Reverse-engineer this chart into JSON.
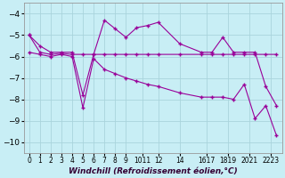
{
  "xlabel": "Windchill (Refroidissement éolien,°C)",
  "line1_x": [
    0,
    1,
    2,
    3,
    4,
    5,
    6,
    7,
    8,
    9,
    10,
    11,
    12,
    14,
    16,
    17,
    18,
    19,
    20,
    21,
    22,
    23
  ],
  "line1_y": [
    -5.0,
    -5.5,
    -5.8,
    -5.8,
    -5.8,
    -7.8,
    -5.9,
    -4.3,
    -4.7,
    -5.1,
    -4.65,
    -4.55,
    -4.4,
    -5.4,
    -5.8,
    -5.8,
    -5.1,
    -5.8,
    -5.8,
    -5.8,
    -7.4,
    -8.3
  ],
  "line2_x": [
    0,
    1,
    2,
    3,
    4,
    5,
    6,
    7,
    8,
    9,
    10,
    11,
    12,
    14,
    16,
    17,
    18,
    19,
    20,
    21,
    22,
    23
  ],
  "line2_y": [
    -5.0,
    -5.8,
    -5.9,
    -5.85,
    -5.9,
    -5.9,
    -5.9,
    -5.9,
    -5.9,
    -5.9,
    -5.9,
    -5.9,
    -5.9,
    -5.9,
    -5.9,
    -5.9,
    -5.9,
    -5.9,
    -5.9,
    -5.9,
    -5.9,
    -5.9
  ],
  "line3_x": [
    0,
    1,
    2,
    3,
    4,
    5,
    6,
    7,
    8,
    9,
    10,
    11,
    12,
    14,
    16,
    17,
    18,
    19,
    20,
    21,
    22,
    23
  ],
  "line3_y": [
    -5.8,
    -5.9,
    -6.0,
    -5.9,
    -6.0,
    -8.4,
    -6.1,
    -6.6,
    -6.8,
    -7.0,
    -7.15,
    -7.3,
    -7.4,
    -7.7,
    -7.9,
    -7.9,
    -7.9,
    -8.0,
    -7.3,
    -8.9,
    -8.3,
    -9.7
  ],
  "color": "#990099",
  "bg_color": "#c8eef5",
  "grid_color": "#aad4dc",
  "ylim": [
    -10.5,
    -3.5
  ],
  "xlim": [
    -0.5,
    23.5
  ],
  "yticks": [
    -10,
    -9,
    -8,
    -7,
    -6,
    -5,
    -4
  ],
  "xtick_positions": [
    0,
    1,
    2,
    3,
    4,
    5,
    6,
    7,
    8,
    9,
    10.5,
    12,
    14,
    16.5,
    18.5,
    20.5,
    22.5
  ],
  "xtick_labels": [
    "0",
    "1",
    "2",
    "3",
    "4",
    "5",
    "6",
    "7",
    "8",
    "9",
    "1011",
    "12",
    "14",
    "1617",
    "1819",
    "2021",
    "2223"
  ]
}
